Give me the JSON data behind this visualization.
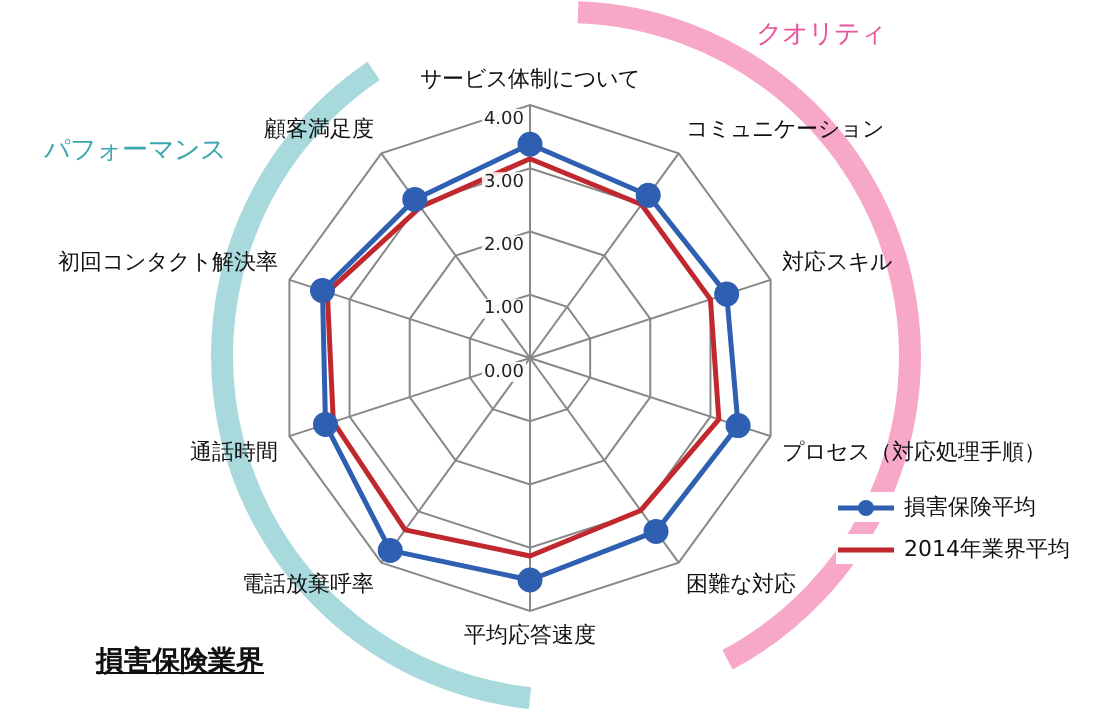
{
  "chart_data": {
    "type": "radar",
    "title": "損害保険業界",
    "categories": [
      "サービス体制について",
      "コミュニケーション",
      "対応スキル",
      "プロセス（対応処理手順）",
      "困難な対応",
      "平均応答速度",
      "電話放棄呼率",
      "通話時間",
      "初回コンタクト解決率",
      "顧客満足度"
    ],
    "series": [
      {
        "name": "損害保険平均",
        "color": "#2e5fb0",
        "marker": "circle",
        "values": [
          3.38,
          3.18,
          3.27,
          3.46,
          3.39,
          3.51,
          3.76,
          3.4,
          3.45,
          3.1
        ]
      },
      {
        "name": "2014年業界平均",
        "color": "#c0282d",
        "marker": "none",
        "values": [
          3.15,
          3.0,
          3.0,
          3.14,
          2.98,
          3.13,
          3.36,
          3.27,
          3.37,
          2.95
        ]
      }
    ],
    "ylim": [
      0,
      4
    ],
    "yticks": [
      {
        "value": 0,
        "label": "0.00"
      },
      {
        "value": 1,
        "label": "1.00"
      },
      {
        "value": 2,
        "label": "2.00"
      },
      {
        "value": 3,
        "label": "3.00"
      },
      {
        "value": 4,
        "label": "4.00"
      }
    ],
    "grid": true,
    "legend": "bottom right",
    "annotations": [
      "クオリティ",
      "パフォーマンス"
    ]
  }
}
